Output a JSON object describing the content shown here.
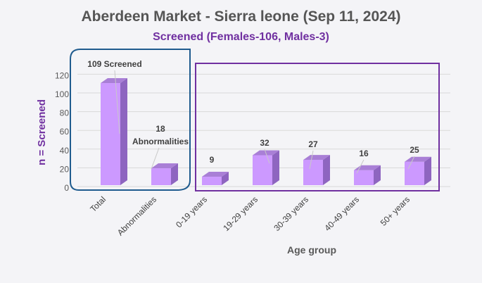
{
  "chart_data": {
    "type": "bar",
    "title": "Aberdeen Market - Sierra leone (Sep 11, 2024)",
    "subtitle": "Screened (Females-106, Males-3)",
    "ylabel": "n = Screened",
    "xlabel": "Age group",
    "ylim": [
      0,
      120
    ],
    "yticks": [
      0,
      20,
      40,
      60,
      80,
      100,
      120
    ],
    "categories": [
      "Total",
      "Abnormalities",
      "0-19 years",
      "19-29 years",
      "30-39 years",
      "40-49 years",
      "50+ years"
    ],
    "values": [
      109,
      18,
      9,
      32,
      27,
      16,
      25
    ],
    "data_labels": [
      "109 Screened",
      "18 Abnormalities",
      "9",
      "32",
      "27",
      "16",
      "25"
    ],
    "bar_color": "#cc99ff",
    "bar_side_color": "#8e65c0",
    "bar_top_color": "#a97fd6",
    "group_box_colors": [
      "#1f5b8e",
      "#7030a0"
    ],
    "grid": true
  }
}
